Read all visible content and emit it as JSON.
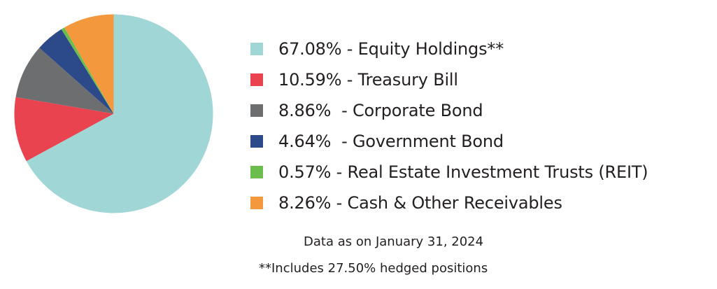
{
  "chart_data": {
    "type": "pie",
    "slices": [
      {
        "label": "67.08% - Equity Holdings**",
        "value": 67.08,
        "color": "#a0d6d6"
      },
      {
        "label": "10.59% - Treasury Bill",
        "value": 10.59,
        "color": "#e8434f"
      },
      {
        "label": "8.86%  - Corporate Bond",
        "value": 8.86,
        "color": "#6d6e70"
      },
      {
        "label": "4.64%  - Government Bond",
        "value": 4.64,
        "color": "#2c4a8a"
      },
      {
        "label": "0.57% - Real Estate Investment Trusts (REIT)",
        "value": 0.57,
        "color": "#6bbd4e"
      },
      {
        "label": "8.26% - Cash & Other Receivables",
        "value": 8.26,
        "color": "#f4983e"
      }
    ],
    "start": "top",
    "direction": "clockwise",
    "legend_placement": "right"
  },
  "notes": {
    "date": "Data as on January 31, 2024",
    "hedge": "**Includes 27.50% hedged positions"
  }
}
